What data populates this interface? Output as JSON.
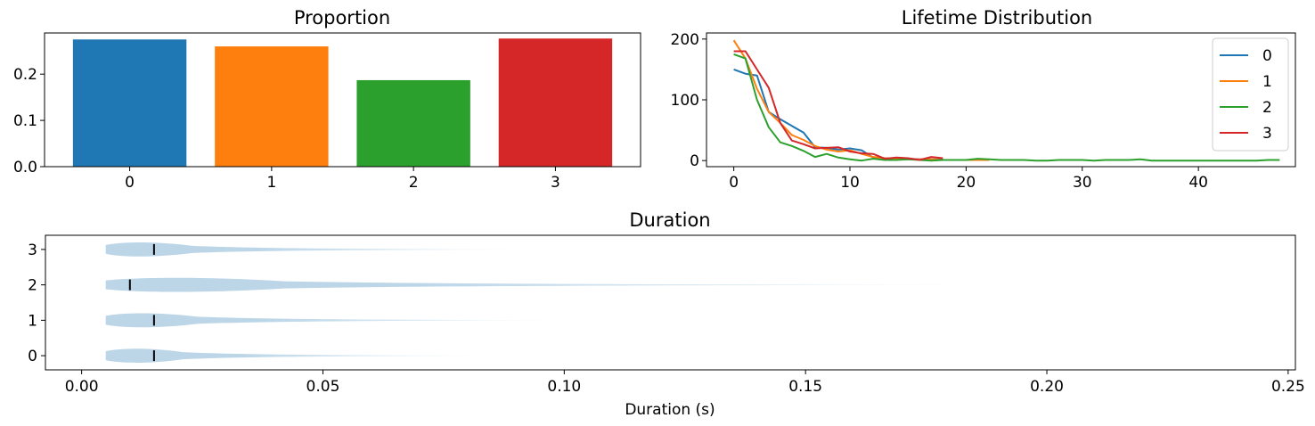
{
  "chart_data": [
    {
      "type": "bar",
      "title": "Proportion",
      "categories": [
        "0",
        "1",
        "2",
        "3"
      ],
      "values": [
        0.275,
        0.26,
        0.187,
        0.277
      ],
      "colors": [
        "#1f77b4",
        "#ff7f0e",
        "#2ca02c",
        "#d62728"
      ],
      "ylim": [
        0,
        0.289
      ],
      "yticks": [
        0.0,
        0.1,
        0.2
      ],
      "ytick_labels": [
        "0.0",
        "0.1",
        "0.2"
      ]
    },
    {
      "type": "line",
      "title": "Lifetime Distribution",
      "xlim": [
        -2.35,
        48.35
      ],
      "ylim": [
        -10,
        210
      ],
      "xticks": [
        0,
        10,
        20,
        30,
        40
      ],
      "yticks": [
        0,
        100,
        200
      ],
      "legend": "top-right",
      "series": [
        {
          "name": "0",
          "color": "#1f77b4",
          "x": [
            0,
            1,
            2,
            3,
            4,
            5,
            6,
            7,
            8,
            9,
            10,
            11,
            12,
            13,
            14,
            15,
            16,
            17,
            18
          ],
          "y": [
            150,
            143,
            140,
            80,
            68,
            57,
            46,
            22,
            21,
            18,
            20,
            17,
            5,
            4,
            3,
            3,
            2,
            2,
            2
          ]
        },
        {
          "name": "1",
          "color": "#ff7f0e",
          "x": [
            0,
            1,
            2,
            3,
            4,
            5,
            6,
            7,
            8,
            9,
            10,
            11,
            12,
            13,
            14,
            15,
            16,
            17,
            18,
            19,
            20,
            21,
            22
          ],
          "y": [
            198,
            168,
            118,
            80,
            62,
            42,
            34,
            24,
            18,
            15,
            17,
            11,
            6,
            4,
            3,
            2,
            2,
            2,
            1,
            1,
            1,
            1,
            1
          ]
        },
        {
          "name": "2",
          "color": "#2ca02c",
          "x": [
            0,
            1,
            2,
            3,
            4,
            5,
            6,
            7,
            8,
            9,
            10,
            11,
            12,
            13,
            14,
            15,
            16,
            17,
            18,
            19,
            20,
            21,
            22,
            23,
            24,
            25,
            26,
            27,
            28,
            29,
            30,
            31,
            32,
            33,
            34,
            35,
            36,
            37,
            38,
            39,
            40,
            41,
            42,
            43,
            44,
            45,
            46,
            47
          ],
          "y": [
            175,
            168,
            100,
            55,
            30,
            24,
            16,
            6,
            11,
            5,
            2,
            0,
            3,
            1,
            1,
            2,
            1,
            0,
            1,
            1,
            1,
            3,
            2,
            1,
            1,
            1,
            0,
            0,
            1,
            1,
            1,
            0,
            1,
            1,
            1,
            2,
            0,
            0,
            0,
            0,
            0,
            0,
            0,
            0,
            0,
            0,
            1,
            1
          ]
        },
        {
          "name": "3",
          "color": "#d62728",
          "x": [
            0,
            1,
            2,
            3,
            4,
            5,
            6,
            7,
            8,
            9,
            10,
            11,
            12,
            13,
            14,
            15,
            16,
            17,
            18
          ],
          "y": [
            180,
            180,
            150,
            120,
            62,
            33,
            27,
            20,
            21,
            22,
            15,
            12,
            11,
            3,
            5,
            4,
            1,
            6,
            4
          ]
        }
      ]
    },
    {
      "type": "violin",
      "title": "Duration",
      "xlabel": "Duration (s)",
      "xlim": [
        -0.0075,
        0.2515
      ],
      "xticks": [
        0.0,
        0.05,
        0.1,
        0.15,
        0.2,
        0.25
      ],
      "xtick_labels": [
        "0.00",
        "0.05",
        "0.10",
        "0.15",
        "0.20",
        "0.25"
      ],
      "categories": [
        "0",
        "1",
        "2",
        "3"
      ],
      "min": [
        0.005,
        0.005,
        0.005,
        0.005
      ],
      "max": [
        0.085,
        0.1,
        0.19,
        0.095
      ],
      "median": [
        0.015,
        0.015,
        0.01,
        0.015
      ],
      "color": "#1f77b4"
    }
  ]
}
